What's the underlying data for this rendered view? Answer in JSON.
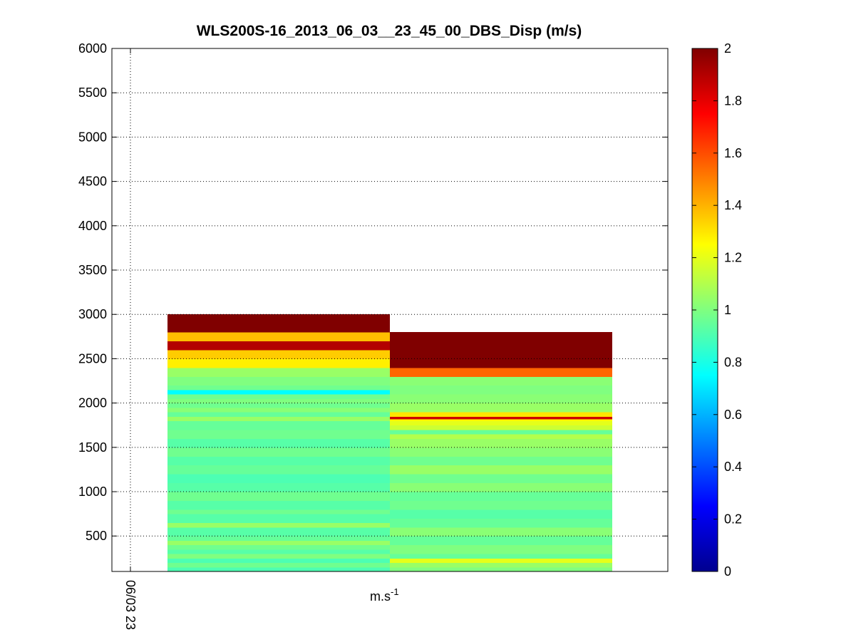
{
  "chart_data": {
    "type": "heatmap",
    "title": "WLS200S-16_2013_06_03__23_45_00_DBS_Disp (m/s)",
    "xlabel": {
      "base": "m.s",
      "sup": "-1"
    },
    "ylabel": "",
    "x_tick_labels": [
      "06/03 23"
    ],
    "y_ticks": [
      500,
      1000,
      1500,
      2000,
      2500,
      3000,
      3500,
      4000,
      4500,
      5000,
      5500,
      6000
    ],
    "ylim": [
      100,
      6000
    ],
    "grid": true,
    "colormap": "jet",
    "clim": [
      0,
      2
    ],
    "colorbar_ticks": [
      0,
      0.2,
      0.4,
      0.6,
      0.8,
      1,
      1.2,
      1.4,
      1.6,
      1.8,
      2
    ],
    "colorbar_ticks_labels": [
      "0",
      "0.2",
      "0.4",
      "0.6",
      "0.8",
      "1",
      "1.2",
      "1.4",
      "1.6",
      "1.8",
      "2"
    ],
    "columns": [
      {
        "name": "",
        "x_span": [
          0.1,
          0.5
        ],
        "cells": [
          [
            100,
            150,
            0.9
          ],
          [
            150,
            200,
            0.97
          ],
          [
            200,
            250,
            0.9
          ],
          [
            250,
            300,
            1.0
          ],
          [
            300,
            350,
            0.92
          ],
          [
            350,
            400,
            0.97
          ],
          [
            400,
            450,
            1.05
          ],
          [
            450,
            500,
            0.95
          ],
          [
            500,
            600,
            0.92
          ],
          [
            600,
            650,
            1.05
          ],
          [
            650,
            750,
            0.92
          ],
          [
            750,
            800,
            0.97
          ],
          [
            800,
            900,
            0.92
          ],
          [
            900,
            1000,
            0.97
          ],
          [
            1000,
            1100,
            0.92
          ],
          [
            1100,
            1200,
            0.9
          ],
          [
            1200,
            1300,
            0.95
          ],
          [
            1300,
            1400,
            0.92
          ],
          [
            1400,
            1500,
            0.97
          ],
          [
            1500,
            1600,
            0.92
          ],
          [
            1600,
            1700,
            0.97
          ],
          [
            1700,
            1800,
            0.95
          ],
          [
            1800,
            1850,
            1.05
          ],
          [
            1850,
            1900,
            0.95
          ],
          [
            1900,
            1950,
            1.02
          ],
          [
            1950,
            2000,
            0.97
          ],
          [
            2000,
            2050,
            1.0
          ],
          [
            2050,
            2100,
            0.97
          ],
          [
            2100,
            2150,
            0.75
          ],
          [
            2150,
            2200,
            0.97
          ],
          [
            2200,
            2300,
            1.0
          ],
          [
            2300,
            2400,
            1.05
          ],
          [
            2400,
            2500,
            1.28
          ],
          [
            2500,
            2600,
            1.35
          ],
          [
            2600,
            2700,
            1.9
          ],
          [
            2700,
            2800,
            1.38
          ],
          [
            2800,
            3000,
            2.0
          ]
        ]
      },
      {
        "name": "",
        "x_span": [
          0.5,
          0.9
        ],
        "cells": [
          [
            100,
            150,
            1.0
          ],
          [
            150,
            200,
            1.05
          ],
          [
            200,
            250,
            1.2
          ],
          [
            250,
            300,
            0.95
          ],
          [
            300,
            400,
            1.0
          ],
          [
            400,
            500,
            0.95
          ],
          [
            500,
            600,
            1.02
          ],
          [
            600,
            700,
            0.95
          ],
          [
            700,
            800,
            0.92
          ],
          [
            800,
            900,
            0.97
          ],
          [
            900,
            1000,
            0.95
          ],
          [
            1000,
            1100,
            1.02
          ],
          [
            1100,
            1200,
            0.97
          ],
          [
            1200,
            1300,
            1.05
          ],
          [
            1300,
            1400,
            0.97
          ],
          [
            1400,
            1500,
            1.02
          ],
          [
            1500,
            1600,
            1.05
          ],
          [
            1600,
            1650,
            1.1
          ],
          [
            1650,
            1700,
            0.95
          ],
          [
            1700,
            1750,
            1.15
          ],
          [
            1750,
            1800,
            1.2
          ],
          [
            1800,
            1820,
            1.25
          ],
          [
            1820,
            1850,
            1.85
          ],
          [
            1850,
            1900,
            1.3
          ],
          [
            1900,
            2000,
            1.05
          ],
          [
            2000,
            2100,
            1.02
          ],
          [
            2100,
            2200,
            1.0
          ],
          [
            2200,
            2300,
            1.02
          ],
          [
            2300,
            2400,
            1.55
          ],
          [
            2400,
            2800,
            2.0
          ]
        ]
      }
    ]
  }
}
